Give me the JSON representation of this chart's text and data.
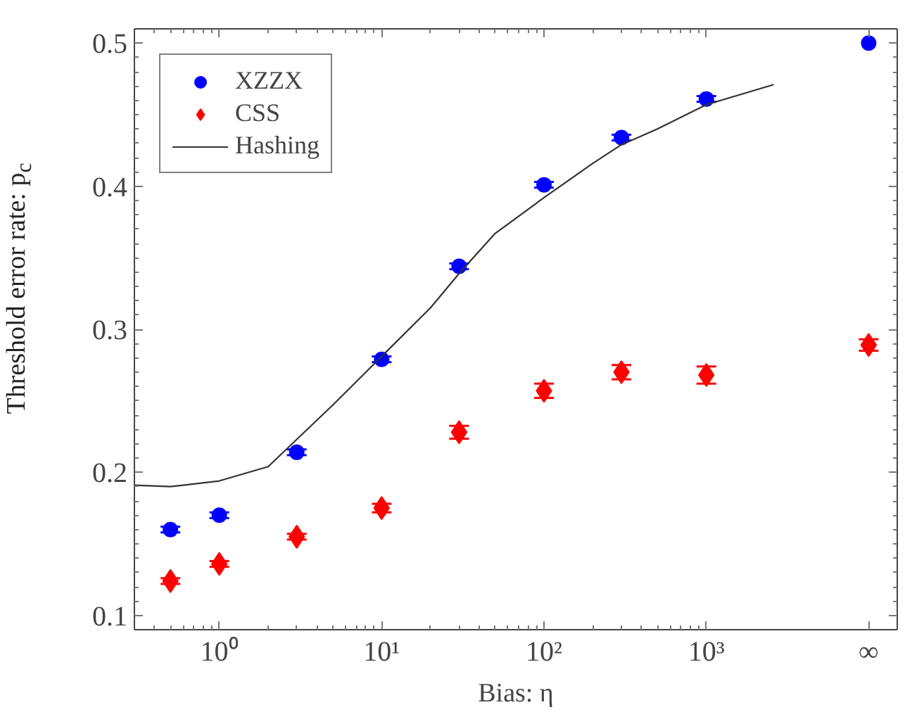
{
  "chart_data": {
    "type": "scatter",
    "xlabel": "Bias: η",
    "ylabel": "Threshold error rate: p$_{c}$",
    "log": "x",
    "xlim": [
      0.3,
      15000
    ],
    "ylim": [
      0.09,
      0.51
    ],
    "xticks": [
      {
        "value": 0.4,
        "label": null
      },
      {
        "value": 0.5,
        "label": null
      },
      {
        "value": 0.6,
        "label": null
      },
      {
        "value": 0.7,
        "label": null
      },
      {
        "value": 0.8,
        "label": null
      },
      {
        "value": 0.9,
        "label": null
      },
      {
        "value": 1,
        "label": "10⁰"
      },
      {
        "value": 2,
        "label": null
      },
      {
        "value": 3,
        "label": null
      },
      {
        "value": 4,
        "label": null
      },
      {
        "value": 5,
        "label": null
      },
      {
        "value": 6,
        "label": null
      },
      {
        "value": 7,
        "label": null
      },
      {
        "value": 8,
        "label": null
      },
      {
        "value": 9,
        "label": null
      },
      {
        "value": 10,
        "label": "10¹"
      },
      {
        "value": 20,
        "label": null
      },
      {
        "value": 30,
        "label": null
      },
      {
        "value": 40,
        "label": null
      },
      {
        "value": 50,
        "label": null
      },
      {
        "value": 60,
        "label": null
      },
      {
        "value": 70,
        "label": null
      },
      {
        "value": 80,
        "label": null
      },
      {
        "value": 90,
        "label": null
      },
      {
        "value": 100,
        "label": "10²"
      },
      {
        "value": 200,
        "label": null
      },
      {
        "value": 300,
        "label": null
      },
      {
        "value": 400,
        "label": null
      },
      {
        "value": 500,
        "label": null
      },
      {
        "value": 600,
        "label": null
      },
      {
        "value": 700,
        "label": null
      },
      {
        "value": 800,
        "label": null
      },
      {
        "value": 900,
        "label": null
      },
      {
        "value": 1000,
        "label": "10³"
      },
      {
        "value": 10000,
        "label": "∞"
      }
    ],
    "yticks": [
      0.1,
      0.2,
      0.3,
      0.4,
      0.5,
      {
        "value": 0.11,
        "label": null
      },
      {
        "value": 0.12,
        "label": null
      },
      {
        "value": 0.13,
        "label": null
      },
      {
        "value": 0.14,
        "label": null
      },
      {
        "value": 0.15,
        "label": null
      },
      {
        "value": 0.16,
        "label": null
      },
      {
        "value": 0.17,
        "label": null
      },
      {
        "value": 0.18,
        "label": null
      },
      {
        "value": 0.19,
        "label": null
      },
      {
        "value": 0.21,
        "label": null
      },
      {
        "value": 0.22,
        "label": null
      },
      {
        "value": 0.23,
        "label": null
      },
      {
        "value": 0.24,
        "label": null
      },
      {
        "value": 0.25,
        "label": null
      },
      {
        "value": 0.26,
        "label": null
      },
      {
        "value": 0.27,
        "label": null
      },
      {
        "value": 0.28,
        "label": null
      },
      {
        "value": 0.29,
        "label": null
      },
      {
        "value": 0.31,
        "label": null
      },
      {
        "value": 0.32,
        "label": null
      },
      {
        "value": 0.33,
        "label": null
      },
      {
        "value": 0.34,
        "label": null
      },
      {
        "value": 0.35,
        "label": null
      },
      {
        "value": 0.36,
        "label": null
      },
      {
        "value": 0.37,
        "label": null
      },
      {
        "value": 0.38,
        "label": null
      },
      {
        "value": 0.39,
        "label": null
      },
      {
        "value": 0.41,
        "label": null
      },
      {
        "value": 0.42,
        "label": null
      },
      {
        "value": 0.43,
        "label": null
      },
      {
        "value": 0.44,
        "label": null
      },
      {
        "value": 0.45,
        "label": null
      },
      {
        "value": 0.46,
        "label": null
      },
      {
        "value": 0.47,
        "label": null
      },
      {
        "value": 0.48,
        "label": null
      },
      {
        "value": 0.49,
        "label": null
      }
    ],
    "grid": false,
    "legend": "top left",
    "series": [
      {
        "name": "XZZX",
        "marker": "circle",
        "color": "#0000ff",
        "x": [
          0.5,
          1,
          3,
          10,
          30,
          100,
          300,
          1000,
          10000
        ],
        "values": [
          0.16,
          0.17,
          0.214,
          0.279,
          0.344,
          0.401,
          0.434,
          0.461,
          0.5
        ],
        "errors": [
          0.002,
          0.002,
          0.002,
          0.002,
          0.002,
          0.002,
          0.002,
          0.002,
          null
        ]
      },
      {
        "name": "CSS",
        "marker": "diamond",
        "color": "#ff0000",
        "x": [
          0.5,
          1,
          3,
          10,
          30,
          100,
          300,
          1000,
          10000
        ],
        "values": [
          0.124,
          0.136,
          0.155,
          0.175,
          0.228,
          0.257,
          0.27,
          0.268,
          0.289
        ],
        "errors": [
          0.002,
          0.002,
          0.002,
          0.003,
          0.0045,
          0.005,
          0.005,
          0.006,
          0.004
        ]
      },
      {
        "name": "Hashing",
        "type": "line",
        "marker": "none",
        "line_style": "solid",
        "color": "#333333",
        "x": [
          0.3,
          0.5,
          1,
          2,
          3,
          5,
          10,
          20,
          30,
          50,
          100,
          200,
          300,
          500,
          1000,
          2600
        ],
        "values": [
          0.191,
          0.19,
          0.194,
          0.204,
          0.223,
          0.247,
          0.281,
          0.315,
          0.339,
          0.367,
          0.392,
          0.416,
          0.429,
          0.44,
          0.457,
          0.471
        ]
      }
    ]
  }
}
